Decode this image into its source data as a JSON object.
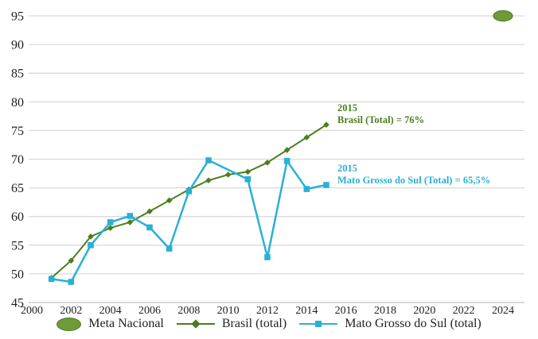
{
  "chart_data": {
    "type": "line",
    "title": "",
    "xlabel": "",
    "ylabel": "",
    "x": [
      2001,
      2002,
      2003,
      2004,
      2005,
      2006,
      2007,
      2008,
      2009,
      2010,
      2011,
      2012,
      2013,
      2014,
      2015
    ],
    "series": [
      {
        "name": "Brasil (total)",
        "marker": "diamond",
        "values": [
          49.3,
          52.3,
          56.5,
          58,
          59,
          60.9,
          62.8,
          64.7,
          66.3,
          67.3,
          67.8,
          69.4,
          71.6,
          73.8,
          76
        ]
      },
      {
        "name": "Mato Grosso do Sul (total)",
        "marker": "square",
        "values": [
          49.1,
          48.6,
          55,
          59,
          60.1,
          58.1,
          54.4,
          64.4,
          69.8,
          null,
          66.5,
          52.9,
          69.7,
          64.8,
          65.5
        ]
      }
    ],
    "meta_point": {
      "name": "Meta Nacional",
      "year": 2024,
      "value": 95
    },
    "x_ticks": [
      2000,
      2002,
      2004,
      2006,
      2008,
      2010,
      2012,
      2014,
      2016,
      2018,
      2020,
      2022,
      2024
    ],
    "y_ticks": [
      45,
      50,
      55,
      60,
      65,
      70,
      75,
      80,
      85,
      90,
      95
    ],
    "xlim": [
      2000,
      2025
    ],
    "ylim": [
      45,
      95
    ],
    "grid": "horizontal",
    "legend_position": "bottom"
  },
  "annotations": {
    "brasil": {
      "line1": "2015",
      "line2": "Brasil (Total) = 76%"
    },
    "ms": {
      "line1": "2015",
      "line2": "Mato Grosso do Sul (Total) = 65,5%"
    }
  },
  "legend": {
    "items": [
      {
        "label": "Meta Nacional",
        "swatch": "ellipse"
      },
      {
        "label": "Brasil (total)",
        "swatch": "line-diamond"
      },
      {
        "label": "Mato Grosso do Sul (total)",
        "swatch": "line-square"
      }
    ]
  },
  "colors": {
    "brasil_green": "#4e7d1e",
    "ms_cyan": "#29b0d6",
    "meta_fill": "#6d9b37",
    "meta_stroke": "#567d2a",
    "gridline": "#dadada",
    "axis_line": "#c2c2c2",
    "tick_text": "#1f1f1f"
  }
}
